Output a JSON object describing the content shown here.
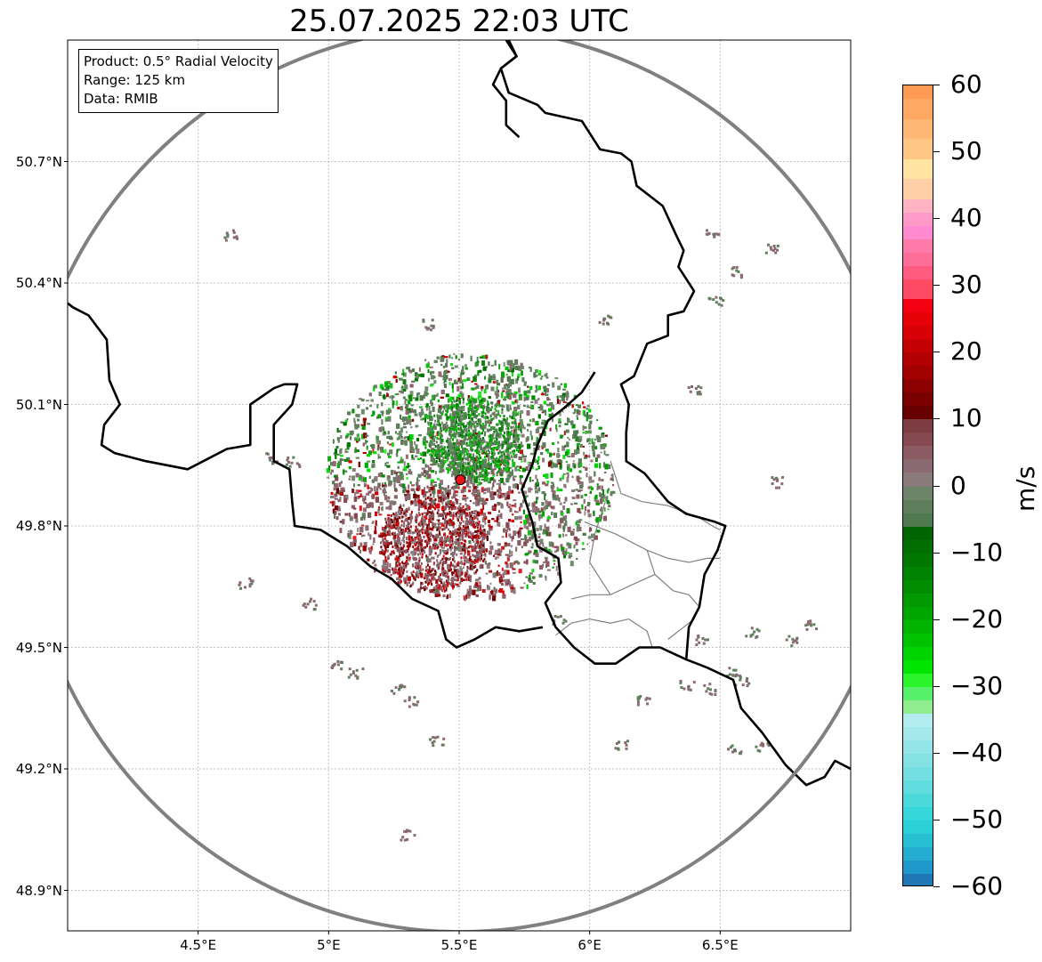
{
  "title": "25.07.2025 22:03 UTC",
  "info_box": {
    "product": "Product: 0.5° Radial Velocity",
    "range": "Range: 125 km",
    "data": "Data: RMIB"
  },
  "map": {
    "lon_range": [
      4.0,
      7.0
    ],
    "lat_range": [
      48.8,
      51.0
    ],
    "x_ticks": [
      {
        "value": 4.5,
        "label": "4.5°E"
      },
      {
        "value": 5.0,
        "label": "5°E"
      },
      {
        "value": 5.5,
        "label": "5.5°E"
      },
      {
        "value": 6.0,
        "label": "6°E"
      },
      {
        "value": 6.5,
        "label": "6.5°E"
      }
    ],
    "y_ticks": [
      {
        "value": 50.7,
        "label": "50.7°N"
      },
      {
        "value": 50.4,
        "label": "50.4°N"
      },
      {
        "value": 50.1,
        "label": "50.1°N"
      },
      {
        "value": 49.8,
        "label": "49.8°N"
      },
      {
        "value": 49.5,
        "label": "49.5°N"
      },
      {
        "value": 49.2,
        "label": "49.2°N"
      },
      {
        "value": 48.9,
        "label": "48.9°N"
      }
    ],
    "radar_site": {
      "lon": 5.505,
      "lat": 49.914,
      "color": "#e8141b"
    },
    "range_ring_color": "#808080",
    "grid": true,
    "border_color": "#000000",
    "subdivision_color": "#808080"
  },
  "colorbar": {
    "unit": "m/s",
    "min": -60,
    "max": 60,
    "ticks": [
      {
        "value": 60,
        "label": "60"
      },
      {
        "value": 50,
        "label": "50"
      },
      {
        "value": 40,
        "label": "40"
      },
      {
        "value": 30,
        "label": "30"
      },
      {
        "value": 20,
        "label": "20"
      },
      {
        "value": 10,
        "label": "10"
      },
      {
        "value": 0,
        "label": "0"
      },
      {
        "value": -10,
        "label": "−10"
      },
      {
        "value": -20,
        "label": "−20"
      },
      {
        "value": -30,
        "label": "−30"
      },
      {
        "value": -40,
        "label": "−40"
      },
      {
        "value": -50,
        "label": "−50"
      },
      {
        "value": -60,
        "label": "−60"
      }
    ],
    "stops": [
      {
        "from": 58,
        "to": 60,
        "color": "#ff9a55"
      },
      {
        "from": 55,
        "to": 58,
        "color": "#ffa864"
      },
      {
        "from": 52,
        "to": 55,
        "color": "#ffb774"
      },
      {
        "from": 49,
        "to": 52,
        "color": "#ffc783"
      },
      {
        "from": 46,
        "to": 49,
        "color": "#ffe4a2"
      },
      {
        "from": 43,
        "to": 46,
        "color": "#ffd0a8"
      },
      {
        "from": 41,
        "to": 43,
        "color": "#ffb3c3"
      },
      {
        "from": 39,
        "to": 41,
        "color": "#ff99c8"
      },
      {
        "from": 37,
        "to": 39,
        "color": "#ff8ad0"
      },
      {
        "from": 35,
        "to": 37,
        "color": "#ff7aa8"
      },
      {
        "from": 33,
        "to": 35,
        "color": "#ff6e98"
      },
      {
        "from": 31,
        "to": 33,
        "color": "#ff5b80"
      },
      {
        "from": 28,
        "to": 31,
        "color": "#ff4a64"
      },
      {
        "from": 26,
        "to": 28,
        "color": "#f50010"
      },
      {
        "from": 24,
        "to": 26,
        "color": "#e60008"
      },
      {
        "from": 22,
        "to": 24,
        "color": "#d70005"
      },
      {
        "from": 20,
        "to": 22,
        "color": "#c50003"
      },
      {
        "from": 18,
        "to": 20,
        "color": "#b20002"
      },
      {
        "from": 16,
        "to": 18,
        "color": "#a00000"
      },
      {
        "from": 14,
        "to": 16,
        "color": "#8d0000"
      },
      {
        "from": 12,
        "to": 14,
        "color": "#7a0000"
      },
      {
        "from": 10,
        "to": 12,
        "color": "#680000"
      },
      {
        "from": 8,
        "to": 10,
        "color": "#7d3b42"
      },
      {
        "from": 6,
        "to": 8,
        "color": "#864851"
      },
      {
        "from": 4,
        "to": 6,
        "color": "#8b5a63"
      },
      {
        "from": 2,
        "to": 4,
        "color": "#8a6a72"
      },
      {
        "from": 0,
        "to": 2,
        "color": "#8a7a7c"
      },
      {
        "from": -2,
        "to": 0,
        "color": "#6e8468"
      },
      {
        "from": -4,
        "to": -2,
        "color": "#5e7e5c"
      },
      {
        "from": -6,
        "to": -4,
        "color": "#4f7a50"
      },
      {
        "from": -8,
        "to": -6,
        "color": "#006400"
      },
      {
        "from": -10,
        "to": -8,
        "color": "#006e00"
      },
      {
        "from": -12,
        "to": -10,
        "color": "#007800"
      },
      {
        "from": -14,
        "to": -12,
        "color": "#008300"
      },
      {
        "from": -16,
        "to": -14,
        "color": "#008e00"
      },
      {
        "from": -18,
        "to": -16,
        "color": "#009900"
      },
      {
        "from": -20,
        "to": -18,
        "color": "#00a600"
      },
      {
        "from": -22,
        "to": -20,
        "color": "#00b400"
      },
      {
        "from": -24,
        "to": -22,
        "color": "#00c300"
      },
      {
        "from": -26,
        "to": -24,
        "color": "#00d400"
      },
      {
        "from": -28,
        "to": -26,
        "color": "#00e500"
      },
      {
        "from": -30,
        "to": -28,
        "color": "#2af52a"
      },
      {
        "from": -32,
        "to": -30,
        "color": "#57f06a"
      },
      {
        "from": -34,
        "to": -32,
        "color": "#90ee90"
      },
      {
        "from": -36,
        "to": -34,
        "color": "#b2ebf0"
      },
      {
        "from": -38,
        "to": -36,
        "color": "#a4e8ec"
      },
      {
        "from": -40,
        "to": -38,
        "color": "#94e5e8"
      },
      {
        "from": -42,
        "to": -40,
        "color": "#84e2e5"
      },
      {
        "from": -44,
        "to": -42,
        "color": "#73dfe2"
      },
      {
        "from": -46,
        "to": -44,
        "color": "#61dcdf"
      },
      {
        "from": -48,
        "to": -46,
        "color": "#4bd9dc"
      },
      {
        "from": -50,
        "to": -48,
        "color": "#36d7db"
      },
      {
        "from": -52,
        "to": -50,
        "color": "#2bd1d6"
      },
      {
        "from": -54,
        "to": -52,
        "color": "#27c0d2"
      },
      {
        "from": -56,
        "to": -54,
        "color": "#23acd0"
      },
      {
        "from": -58,
        "to": -56,
        "color": "#1f98cc"
      },
      {
        "from": -60,
        "to": -58,
        "color": "#1f77b4"
      }
    ]
  }
}
